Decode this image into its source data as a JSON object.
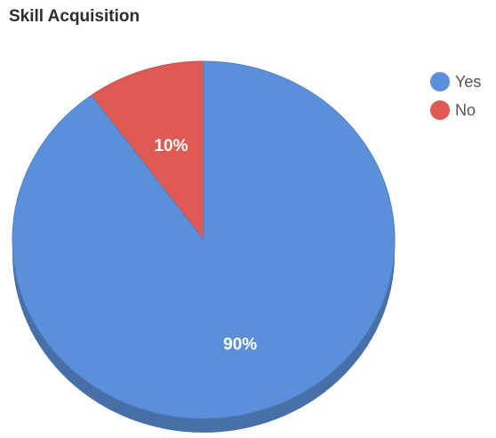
{
  "chart_data": {
    "type": "pie",
    "title": "Skill Acquisition",
    "categories": [
      "Yes",
      "No"
    ],
    "values": [
      90,
      10
    ],
    "data_labels": [
      "90%",
      "10%"
    ],
    "colors": [
      "#5b8fd9",
      "#df5a52"
    ],
    "legend_position": "right",
    "style": "3d"
  }
}
